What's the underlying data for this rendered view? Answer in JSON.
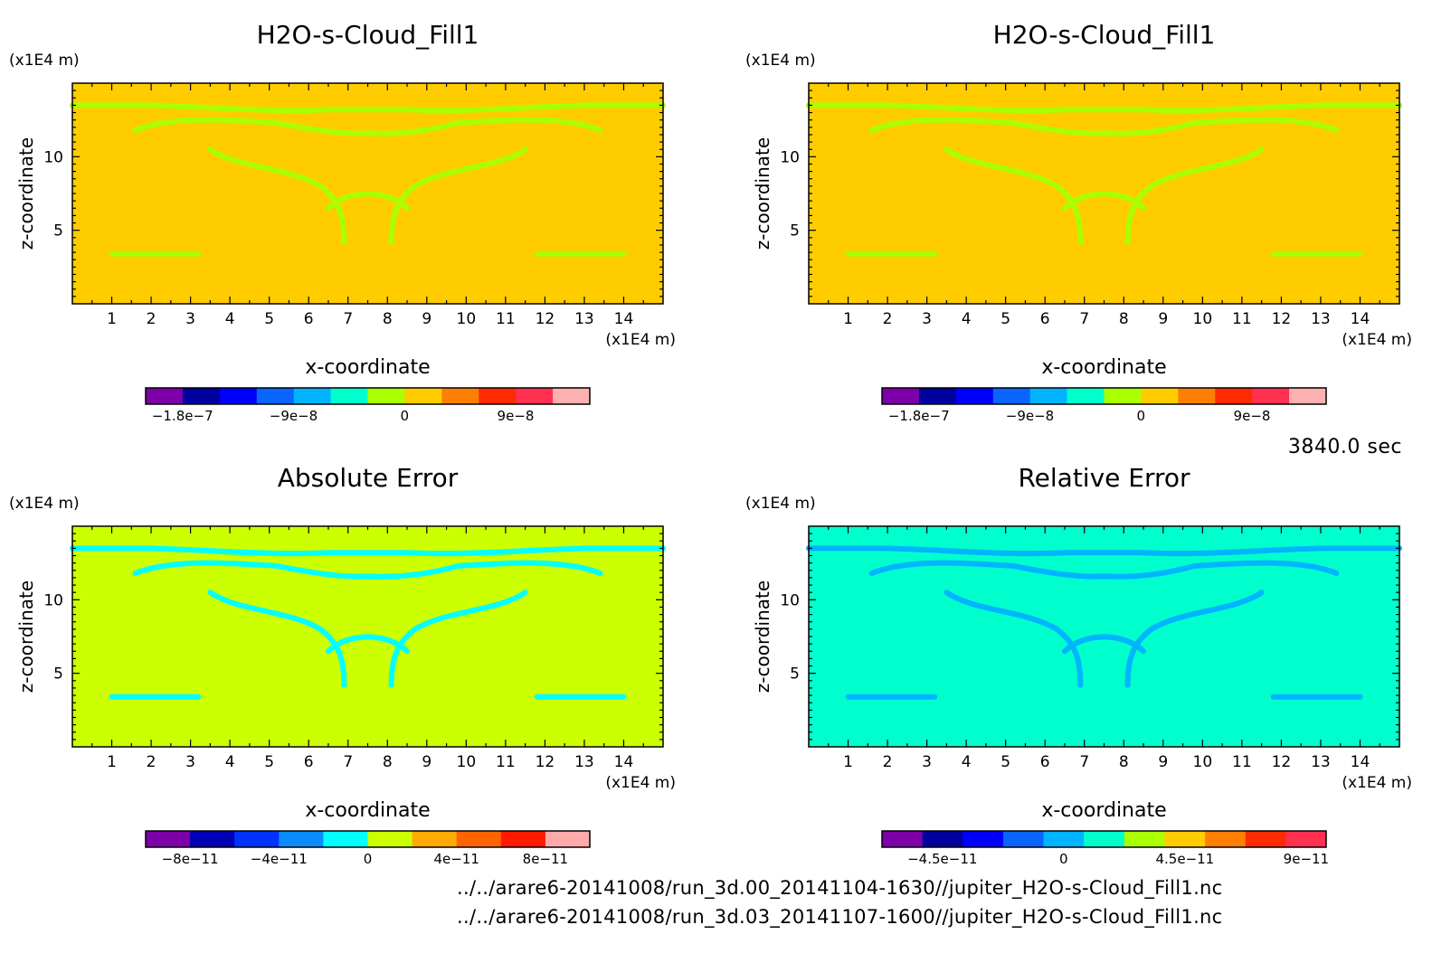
{
  "time_stamp": "3840.0 sec",
  "footer_files": [
    "../../arare6-20141008/run_3d.00_20141104-1630//jupiter_H2O-s-Cloud_Fill1.nc",
    "../../arare6-20141008/run_3d.03_20141107-1600//jupiter_H2O-s-Cloud_Fill1.nc"
  ],
  "chart_data": [
    {
      "type": "heatmap",
      "title": "H2O-s-Cloud_Fill1",
      "xlabel": "x-coordinate",
      "ylabel": "z-coordinate",
      "x_unit": "(x1E4 m)",
      "y_unit": "(x1E4 m)",
      "xlim": [
        0,
        15
      ],
      "ylim": [
        0,
        15
      ],
      "x_ticks": [
        1,
        2,
        3,
        4,
        5,
        6,
        7,
        8,
        9,
        10,
        11,
        12,
        13,
        14
      ],
      "y_ticks": [
        5,
        10
      ],
      "background_color": "#ffcc00",
      "feature_color": "#aaff00",
      "colorbar": {
        "colors": [
          "#7d00a8",
          "#00009e",
          "#0000ff",
          "#0a64ff",
          "#00b4ff",
          "#00ffcc",
          "#aaff00",
          "#ffcc00",
          "#ff7f00",
          "#ff2b00",
          "#ff3050",
          "#ffb0b0"
        ],
        "ticks": [
          {
            "label": "−1.8e−7",
            "pos": 0.083
          },
          {
            "label": "−9e−8",
            "pos": 0.333
          },
          {
            "label": "0",
            "pos": 0.583
          },
          {
            "label": "9e−8",
            "pos": 0.833
          }
        ]
      }
    },
    {
      "type": "heatmap",
      "title": "H2O-s-Cloud_Fill1",
      "xlabel": "x-coordinate",
      "ylabel": "z-coordinate",
      "x_unit": "(x1E4 m)",
      "y_unit": "(x1E4 m)",
      "xlim": [
        0,
        15
      ],
      "ylim": [
        0,
        15
      ],
      "x_ticks": [
        1,
        2,
        3,
        4,
        5,
        6,
        7,
        8,
        9,
        10,
        11,
        12,
        13,
        14
      ],
      "y_ticks": [
        5,
        10
      ],
      "background_color": "#ffcc00",
      "feature_color": "#aaff00",
      "colorbar": {
        "colors": [
          "#7d00a8",
          "#00009e",
          "#0000ff",
          "#0a64ff",
          "#00b4ff",
          "#00ffcc",
          "#aaff00",
          "#ffcc00",
          "#ff7f00",
          "#ff2b00",
          "#ff3050",
          "#ffb0b0"
        ],
        "ticks": [
          {
            "label": "−1.8e−7",
            "pos": 0.083
          },
          {
            "label": "−9e−8",
            "pos": 0.333
          },
          {
            "label": "0",
            "pos": 0.583
          },
          {
            "label": "9e−8",
            "pos": 0.833
          }
        ]
      }
    },
    {
      "type": "heatmap",
      "title": "Absolute Error",
      "xlabel": "x-coordinate",
      "ylabel": "z-coordinate",
      "x_unit": "(x1E4 m)",
      "y_unit": "(x1E4 m)",
      "xlim": [
        0,
        15
      ],
      "ylim": [
        0,
        15
      ],
      "x_ticks": [
        1,
        2,
        3,
        4,
        5,
        6,
        7,
        8,
        9,
        10,
        11,
        12,
        13,
        14
      ],
      "y_ticks": [
        5,
        10
      ],
      "background_color": "#ccff00",
      "feature_color": "#00ffff",
      "colorbar": {
        "colors": [
          "#7d00a8",
          "#0000b4",
          "#0032ff",
          "#0a8cff",
          "#00ffff",
          "#ccff00",
          "#ffaa00",
          "#ff6400",
          "#ff1a00",
          "#ffaaaa"
        ],
        "ticks": [
          {
            "label": "−8e−11",
            "pos": 0.1
          },
          {
            "label": "−4e−11",
            "pos": 0.3
          },
          {
            "label": "0",
            "pos": 0.5
          },
          {
            "label": "4e−11",
            "pos": 0.7
          },
          {
            "label": "8e−11",
            "pos": 0.9
          }
        ]
      }
    },
    {
      "type": "heatmap",
      "title": "Relative Error",
      "xlabel": "x-coordinate",
      "ylabel": "z-coordinate",
      "x_unit": "(x1E4 m)",
      "y_unit": "(x1E4 m)",
      "xlim": [
        0,
        15
      ],
      "ylim": [
        0,
        15
      ],
      "x_ticks": [
        1,
        2,
        3,
        4,
        5,
        6,
        7,
        8,
        9,
        10,
        11,
        12,
        13,
        14
      ],
      "y_ticks": [
        5,
        10
      ],
      "background_color": "#00ffcc",
      "feature_color": "#00b4ff",
      "colorbar": {
        "colors": [
          "#7d00a8",
          "#00009e",
          "#0000ff",
          "#0a64ff",
          "#00b4ff",
          "#00ffcc",
          "#aaff00",
          "#ffcc00",
          "#ff7f00",
          "#ff2b00",
          "#ff3050"
        ],
        "ticks": [
          {
            "label": "−4.5e−11",
            "pos": 0.136
          },
          {
            "label": "0",
            "pos": 0.409
          },
          {
            "label": "4.5e−11",
            "pos": 0.682
          },
          {
            "label": "9e−11",
            "pos": 0.955
          }
        ]
      }
    }
  ]
}
